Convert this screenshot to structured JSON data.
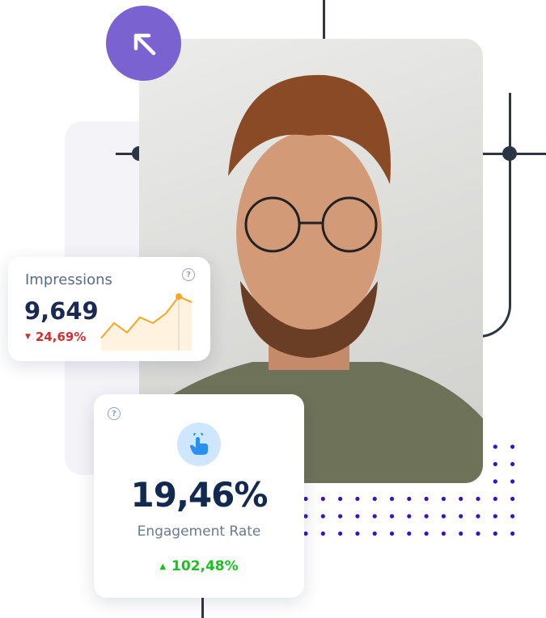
{
  "impressions": {
    "title": "Impressions",
    "value": "9,649",
    "change": "24,69%",
    "trend": "down",
    "sparkline": [
      2,
      6,
      3.5,
      7.5,
      6,
      8.5,
      13,
      11.5
    ]
  },
  "engagement": {
    "value": "19,46%",
    "label": "Engagement Rate",
    "change": "102,48%",
    "trend": "up",
    "icon": "tap-finger-icon"
  },
  "colors": {
    "accent_purple": "#7a63d0",
    "navy": "#1b2a55",
    "negative": "#d22f2f",
    "positive": "#19c21f",
    "sparkline": "#f5a623",
    "dots": "#3b12c2"
  }
}
